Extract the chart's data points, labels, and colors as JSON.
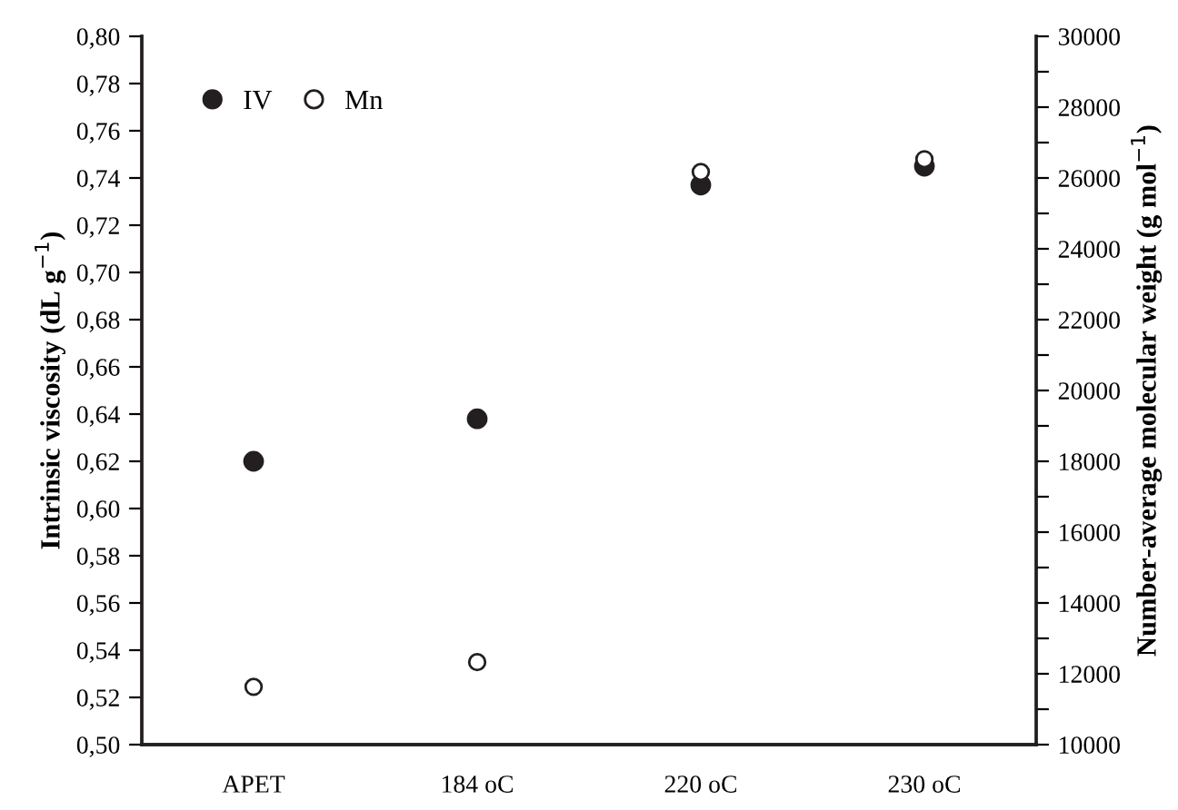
{
  "chart_data": {
    "type": "scatter",
    "categories": [
      "APET",
      "184 oC",
      "220 oC",
      "230 oC"
    ],
    "ylabel": "Intrinsic viscosity (dL g$^{−1}$)",
    "y2label": "Number-average molecular weight (g mol$^{−1}$)",
    "series": [
      {
        "name": "IV",
        "color": "#231f20",
        "marker": "circle",
        "values": [
          0.62,
          0.638,
          0.737,
          0.745
        ]
      },
      {
        "name": "Mn",
        "color": "#ffffff",
        "marker": "circle",
        "axis": "y2",
        "values": [
          11630,
          12330,
          26170,
          26530
        ]
      }
    ],
    "ylim": [
      0.5,
      0.8
    ],
    "yticks": [
      {
        "value": 0.5,
        "label": "0,50"
      },
      {
        "value": 0.52,
        "label": "0,52"
      },
      {
        "value": 0.54,
        "label": "0,54"
      },
      {
        "value": 0.56,
        "label": "0,56"
      },
      {
        "value": 0.58,
        "label": "0,58"
      },
      {
        "value": 0.6,
        "label": "0,60"
      },
      {
        "value": 0.62,
        "label": "0,62"
      },
      {
        "value": 0.64,
        "label": "0,64"
      },
      {
        "value": 0.66,
        "label": "0,66"
      },
      {
        "value": 0.68,
        "label": "0,68"
      },
      {
        "value": 0.7,
        "label": "0,70"
      },
      {
        "value": 0.72,
        "label": "0,72"
      },
      {
        "value": 0.74,
        "label": "0,74"
      },
      {
        "value": 0.76,
        "label": "0,76"
      },
      {
        "value": 0.78,
        "label": "0,78"
      },
      {
        "value": 0.8,
        "label": "0,80"
      }
    ],
    "y2lim": [
      10000,
      30000
    ],
    "y2ticks": [
      10000,
      {
        "value": 11000,
        "label": null
      },
      12000,
      {
        "value": 13000,
        "label": null
      },
      14000,
      {
        "value": 15000,
        "label": null
      },
      16000,
      {
        "value": 17000,
        "label": null
      },
      18000,
      {
        "value": 19000,
        "label": null
      },
      20000,
      {
        "value": 21000,
        "label": null
      },
      22000,
      {
        "value": 23000,
        "label": null
      },
      24000,
      {
        "value": 25000,
        "label": null
      },
      26000,
      {
        "value": 27000,
        "label": null
      },
      28000,
      {
        "value": 29000,
        "label": null
      },
      30000
    ],
    "legend": "top left",
    "grid": false
  }
}
